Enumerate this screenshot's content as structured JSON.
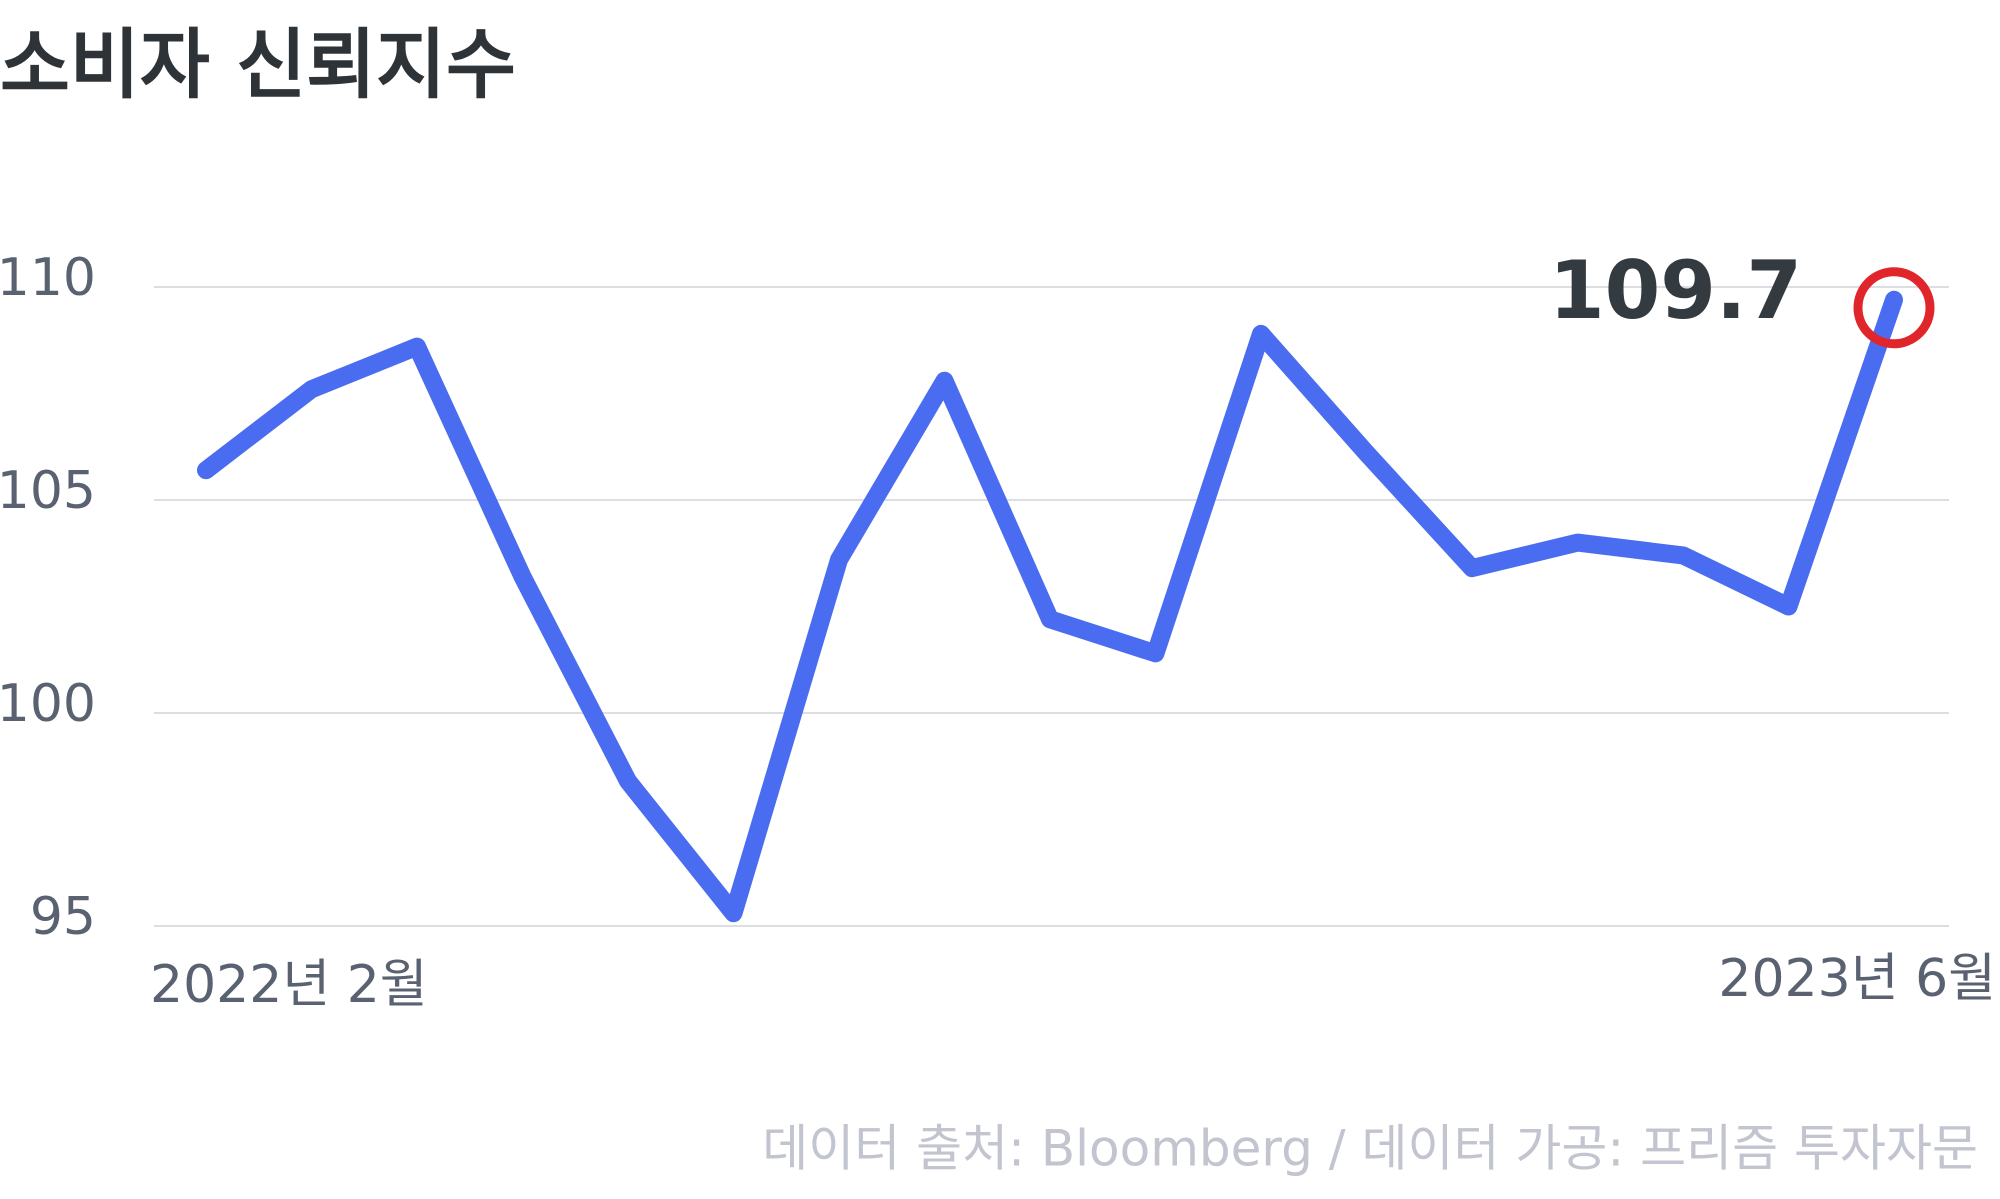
{
  "chart_data": {
    "type": "line",
    "title": "소비자 신뢰지수",
    "categories": [
      "2022년 2월",
      null,
      null,
      null,
      null,
      null,
      null,
      null,
      null,
      null,
      null,
      null,
      null,
      null,
      null,
      null,
      "2023년 6월"
    ],
    "values": [
      105.7,
      107.6,
      108.6,
      103.2,
      98.4,
      95.3,
      103.6,
      107.8,
      102.2,
      101.4,
      108.9,
      106.1,
      103.4,
      104.0,
      103.7,
      102.5,
      109.7
    ],
    "color": "#4a6cf0",
    "highlight_color": "#e0262b",
    "ylim": [
      95,
      110
    ],
    "yticks": [
      95,
      100,
      105,
      110
    ],
    "grid": true,
    "source": "데이터 출처: Bloomberg / 데이터 가공: 프리즘 투자자문"
  }
}
